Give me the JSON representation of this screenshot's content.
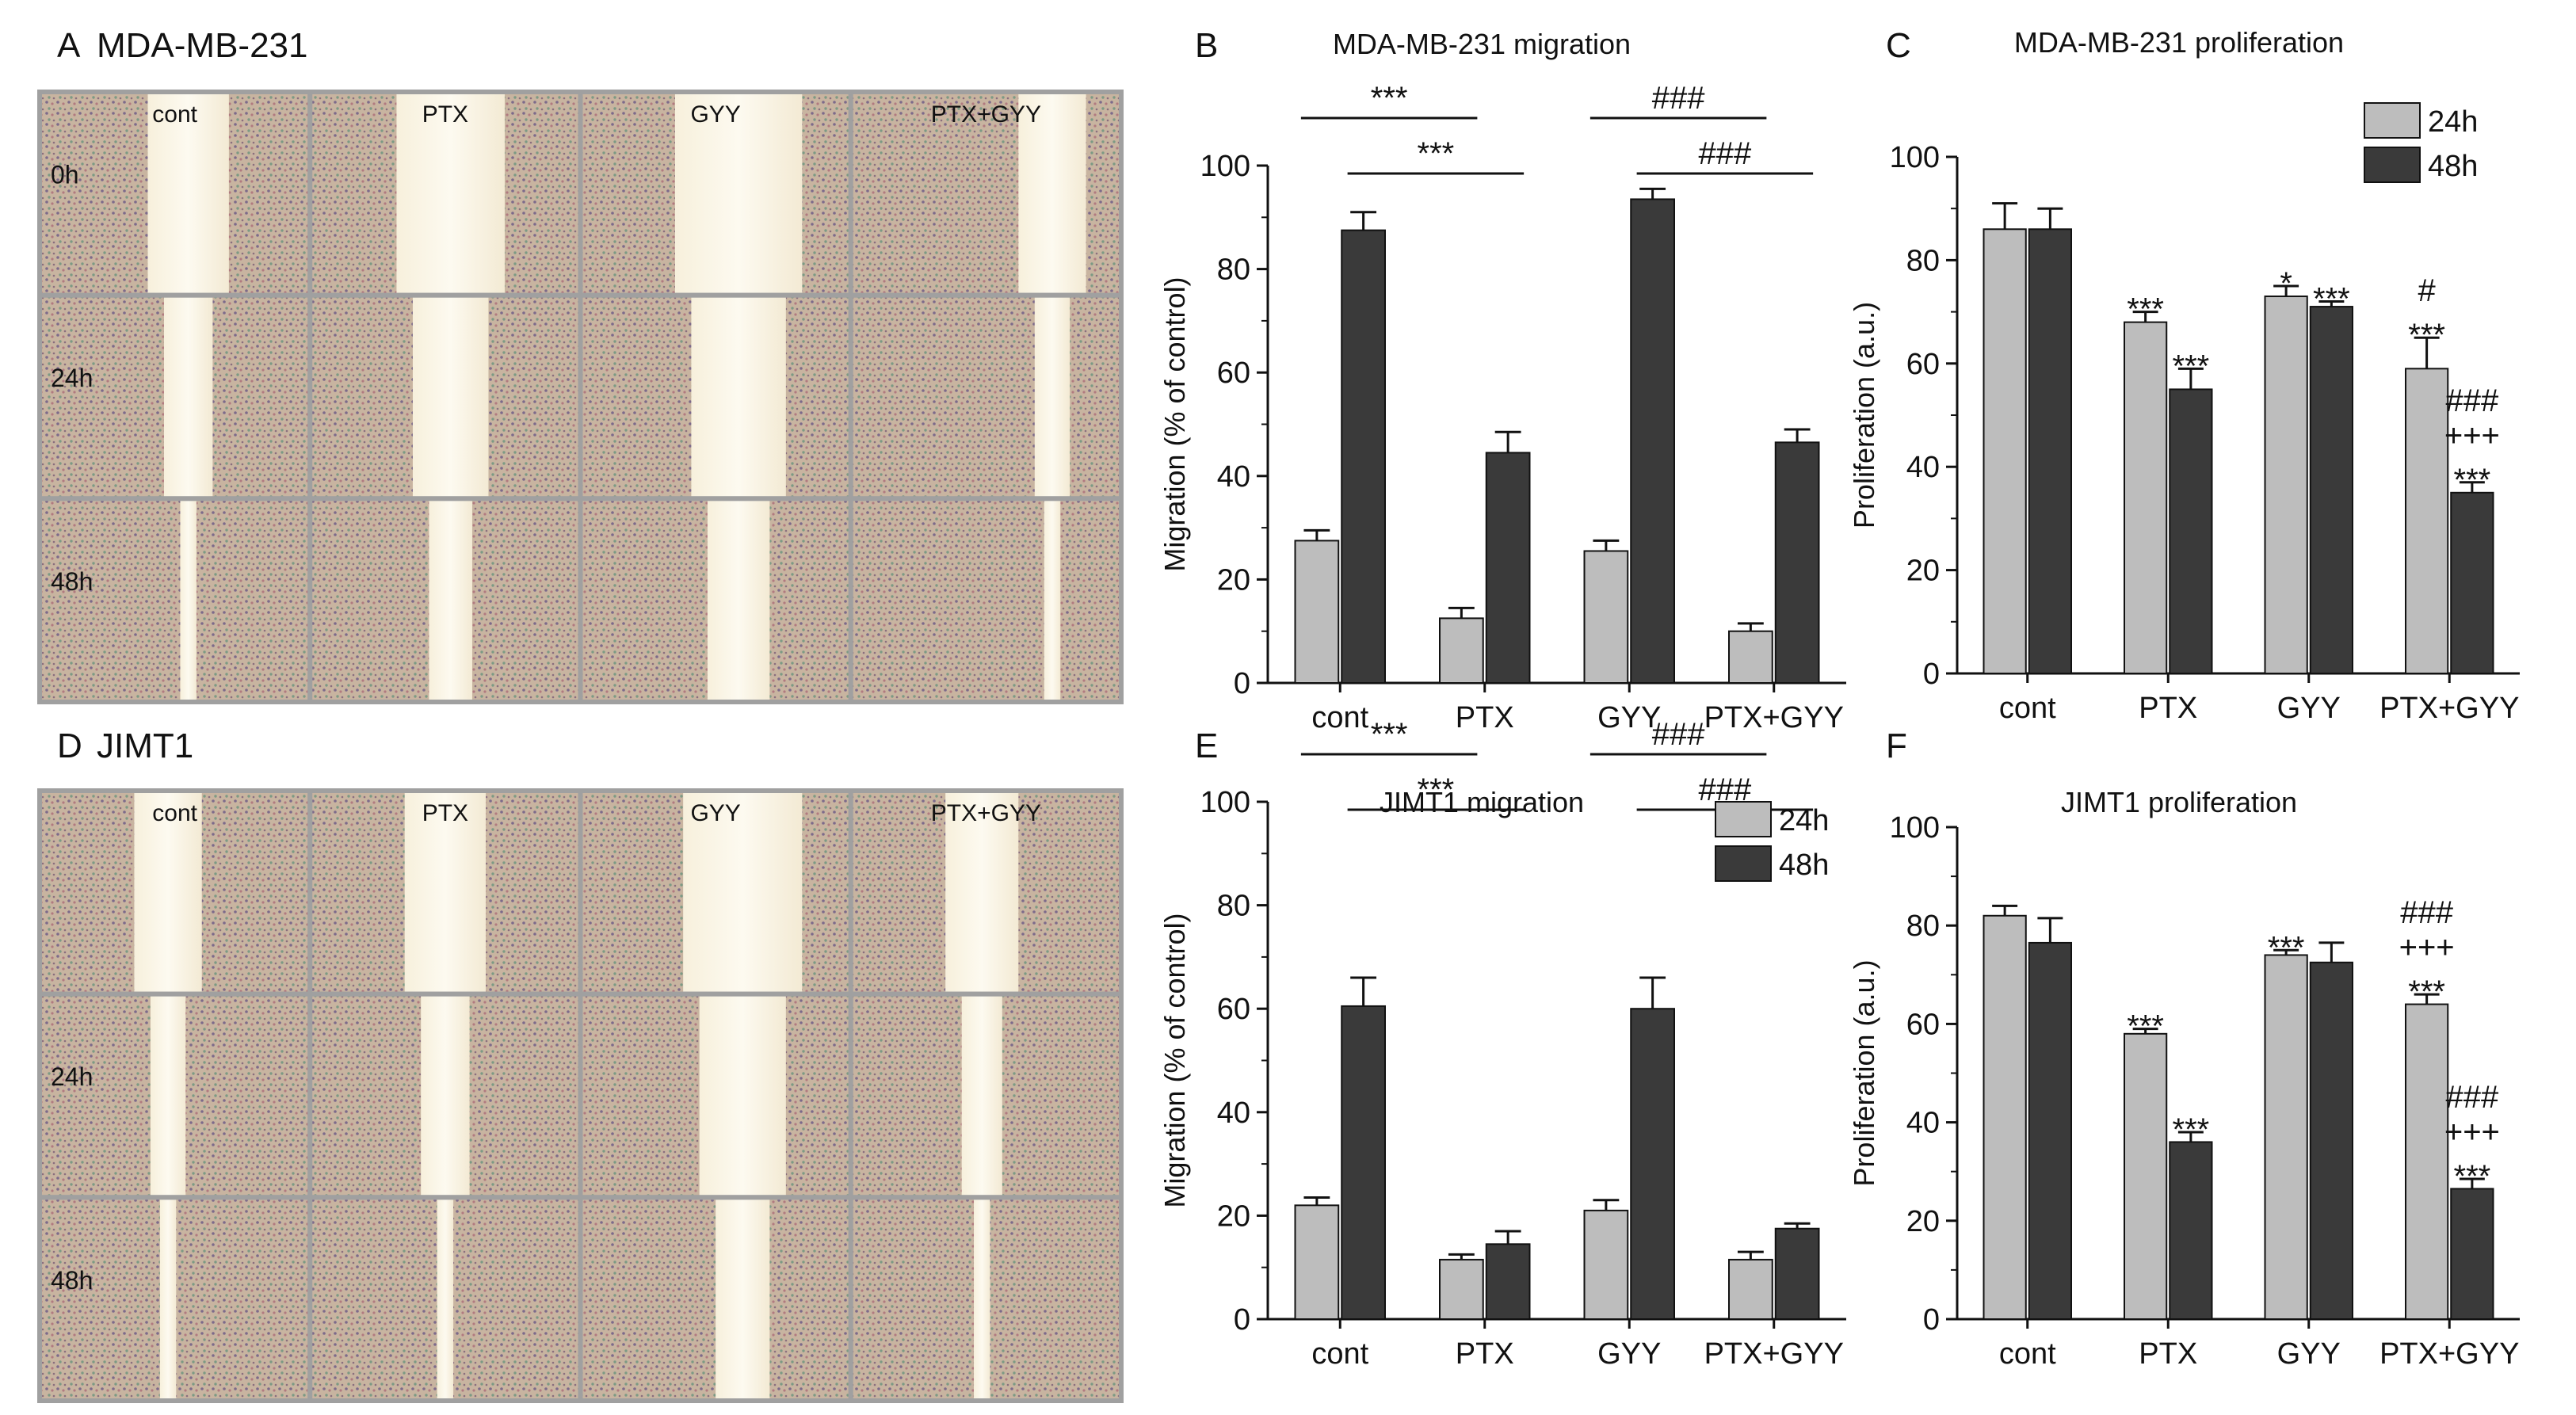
{
  "panels": {
    "A": {
      "label": "A",
      "title": "MDA-MB-231"
    },
    "D": {
      "label": "D",
      "title": "JIMT1"
    },
    "B": {
      "label": "B"
    },
    "C": {
      "label": "C"
    },
    "E": {
      "label": "E"
    },
    "F": {
      "label": "F"
    }
  },
  "grids": [
    {
      "id": "A",
      "columns": [
        "cont",
        "PTX",
        "GYY",
        "PTX+GYY"
      ],
      "rows": [
        "0h",
        "24h",
        "48h"
      ]
    },
    {
      "id": "D",
      "columns": [
        "cont",
        "PTX",
        "GYY",
        "PTX+GYY"
      ],
      "rows": [
        "",
        "24h",
        "48h"
      ]
    }
  ],
  "colors": {
    "light": "#bdbdbd",
    "dark": "#3a3a3a",
    "axis": "#111111"
  },
  "chart_data": [
    {
      "id": "B",
      "type": "bar",
      "title": "MDA-MB-231 migration",
      "categories": [
        "cont",
        "PTX",
        "GYY",
        "PTX+GYY"
      ],
      "series": [
        {
          "name": "24h",
          "values": [
            27.5,
            12.5,
            25.5,
            10
          ],
          "errors": [
            2,
            2,
            2,
            1.5
          ]
        },
        {
          "name": "48h",
          "values": [
            87.5,
            44.5,
            93.5,
            46.5
          ],
          "errors": [
            3.5,
            4,
            2,
            2.5
          ]
        }
      ],
      "ylabel": "Migration (% of control)",
      "xlabel": "",
      "ylim": [
        0,
        100
      ],
      "yticks": [
        0,
        20,
        40,
        60,
        80,
        100
      ],
      "legend": null,
      "brackets": [
        {
          "from": "cont.24h",
          "to": "PTX.24h",
          "label": "***",
          "level": 1
        },
        {
          "from": "cont.48h",
          "to": "PTX.48h",
          "label": "***",
          "level": 0
        },
        {
          "from": "GYY.24h",
          "to": "PTX+GYY.24h",
          "label": "###",
          "level": 1
        },
        {
          "from": "GYY.48h",
          "to": "PTX+GYY.48h",
          "label": "###",
          "level": 0
        }
      ],
      "bar_annotations": []
    },
    {
      "id": "C",
      "type": "bar",
      "title": "MDA-MB-231 proliferation",
      "categories": [
        "cont",
        "PTX",
        "GYY",
        "PTX+GYY"
      ],
      "series": [
        {
          "name": "24h",
          "values": [
            86,
            68,
            73,
            59
          ],
          "errors": [
            5,
            2,
            2,
            6
          ]
        },
        {
          "name": "48h",
          "values": [
            86,
            55,
            71,
            35
          ],
          "errors": [
            4,
            4,
            1,
            2
          ]
        }
      ],
      "ylabel": "Proliferation (a.u.)",
      "xlabel": "",
      "ylim": [
        0,
        100
      ],
      "yticks": [
        0,
        20,
        40,
        60,
        80,
        100
      ],
      "legend": "top-right",
      "brackets": [],
      "bar_annotations": [
        {
          "cat": 1,
          "series": 0,
          "lines": [
            "***"
          ]
        },
        {
          "cat": 1,
          "series": 1,
          "lines": [
            "***"
          ]
        },
        {
          "cat": 2,
          "series": 0,
          "lines": [
            "*"
          ]
        },
        {
          "cat": 2,
          "series": 1,
          "lines": [
            "***"
          ]
        },
        {
          "cat": 3,
          "series": 0,
          "lines": [
            "#",
            "***"
          ]
        },
        {
          "cat": 3,
          "series": 1,
          "lines": [
            "###",
            "+++",
            "***"
          ]
        }
      ]
    },
    {
      "id": "E",
      "type": "bar",
      "title": "JIMT1 migration",
      "categories": [
        "cont",
        "PTX",
        "GYY",
        "PTX+GYY"
      ],
      "series": [
        {
          "name": "24h",
          "values": [
            22,
            11.5,
            21,
            11.5
          ],
          "errors": [
            1.5,
            1,
            2,
            1.5
          ]
        },
        {
          "name": "48h",
          "values": [
            60.5,
            14.5,
            60,
            17.5
          ],
          "errors": [
            5.5,
            2.5,
            6,
            1
          ]
        }
      ],
      "ylabel": "Migration (% of control)",
      "xlabel": "",
      "ylim": [
        0,
        100
      ],
      "yticks": [
        0,
        20,
        40,
        60,
        80,
        100
      ],
      "legend": "top-right",
      "brackets": [
        {
          "from": "cont.24h",
          "to": "PTX.24h",
          "label": "***",
          "level": 1
        },
        {
          "from": "cont.48h",
          "to": "PTX.48h",
          "label": "***",
          "level": 0
        },
        {
          "from": "GYY.24h",
          "to": "PTX+GYY.24h",
          "label": "###",
          "level": 1
        },
        {
          "from": "GYY.48h",
          "to": "PTX+GYY.48h",
          "label": "###",
          "level": 0
        }
      ],
      "bar_annotations": []
    },
    {
      "id": "F",
      "type": "bar",
      "title": "JIMT1 proliferation",
      "categories": [
        "cont",
        "PTX",
        "GYY",
        "PTX+GYY"
      ],
      "series": [
        {
          "name": "24h",
          "values": [
            82,
            58,
            74,
            64
          ],
          "errors": [
            2,
            1,
            1,
            2
          ]
        },
        {
          "name": "48h",
          "values": [
            76.5,
            36,
            72.5,
            26.5
          ],
          "errors": [
            5,
            2,
            4,
            2
          ]
        }
      ],
      "ylabel": "Proliferation (a.u.)",
      "xlabel": "",
      "ylim": [
        0,
        100
      ],
      "yticks": [
        0,
        20,
        40,
        60,
        80,
        100
      ],
      "legend": null,
      "brackets": [],
      "bar_annotations": [
        {
          "cat": 1,
          "series": 0,
          "lines": [
            "***"
          ]
        },
        {
          "cat": 1,
          "series": 1,
          "lines": [
            "***"
          ]
        },
        {
          "cat": 2,
          "series": 0,
          "lines": [
            "***"
          ]
        },
        {
          "cat": 3,
          "series": 0,
          "lines": [
            "###",
            "+++",
            "***"
          ]
        },
        {
          "cat": 3,
          "series": 1,
          "lines": [
            "###",
            "+++",
            "***"
          ]
        }
      ]
    }
  ]
}
